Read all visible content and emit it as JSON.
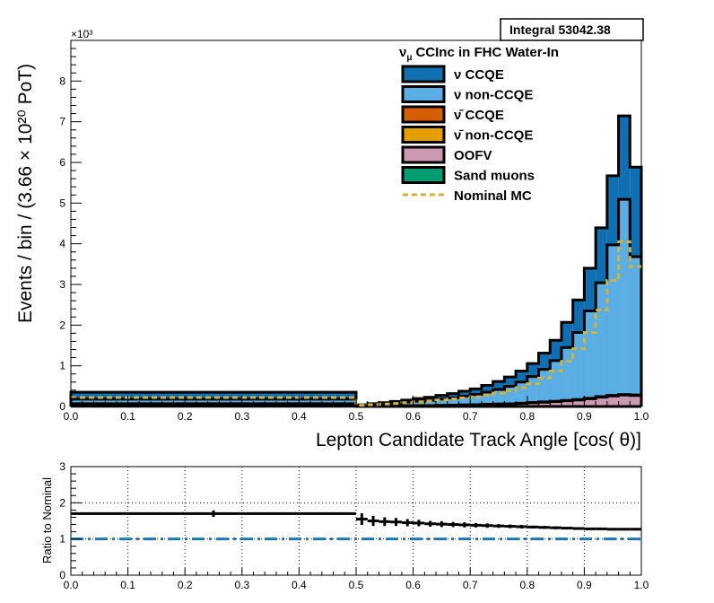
{
  "chart_data": [
    {
      "type": "area",
      "stacked": true,
      "title": "",
      "integral_label": "Integral 53042.38",
      "legend_title": "CCInc in FHC Water-In",
      "legend_title_symbol": "ν",
      "legend_title_subscript": "μ",
      "legend_placement": "top-right",
      "xlabel": "Lepton Candidate Track Angle [cos(   θ)]",
      "ylabel": "Events / bin / (3.66  × 10²⁰ PoT)",
      "y_exponent_label": "×10³",
      "xlim": [
        0.0,
        1.0
      ],
      "ylim": [
        0,
        9000
      ],
      "grid": false,
      "x_ticks": [
        "0.0",
        "0.1",
        "0.2",
        "0.3",
        "0.4",
        "0.5",
        "0.6",
        "0.7",
        "0.8",
        "0.9",
        "1.0"
      ],
      "y_ticks": [
        "0",
        "1",
        "2",
        "3",
        "4",
        "5",
        "6",
        "7",
        "8"
      ],
      "bin_edges": [
        0.0,
        0.5,
        0.52,
        0.54,
        0.56,
        0.58,
        0.6,
        0.62,
        0.64,
        0.66,
        0.68,
        0.7,
        0.72,
        0.74,
        0.76,
        0.78,
        0.8,
        0.82,
        0.84,
        0.86,
        0.88,
        0.9,
        0.92,
        0.94,
        0.96,
        0.98,
        1.0
      ],
      "series": [
        {
          "name": "CCQE",
          "symbol": "ν",
          "color": "#0f6fb0",
          "values": [
            170,
            10,
            20,
            30,
            40,
            50,
            65,
            75,
            90,
            105,
            120,
            140,
            165,
            195,
            230,
            270,
            320,
            400,
            500,
            620,
            800,
            1050,
            1350,
            1700,
            2050,
            2200
          ]
        },
        {
          "name": "non-CCQE",
          "symbol": "ν",
          "color": "#5aaee3",
          "values": [
            110,
            25,
            40,
            55,
            70,
            90,
            110,
            130,
            155,
            180,
            215,
            250,
            300,
            360,
            430,
            520,
            640,
            800,
            1000,
            1300,
            1650,
            2150,
            2800,
            3700,
            4800,
            3400
          ]
        },
        {
          "name": "CCQE",
          "symbol": "ν̄",
          "color": "#d55e00",
          "values": [
            2,
            0,
            0,
            0,
            1,
            1,
            1,
            1,
            1,
            2,
            2,
            2,
            2,
            3,
            3,
            3,
            4,
            4,
            5,
            5,
            6,
            6,
            7,
            7,
            8,
            8
          ]
        },
        {
          "name": "non-CCQE",
          "symbol": "ν̄",
          "color": "#e69f00",
          "values": [
            2,
            0,
            0,
            0,
            1,
            1,
            1,
            1,
            1,
            1,
            2,
            2,
            2,
            2,
            2,
            3,
            3,
            3,
            3,
            4,
            4,
            4,
            5,
            5,
            5,
            5
          ]
        },
        {
          "name": "OOFV",
          "symbol": "",
          "color": "#cc99b2",
          "values": [
            60,
            5,
            8,
            10,
            12,
            15,
            18,
            20,
            25,
            30,
            35,
            40,
            50,
            55,
            60,
            75,
            90,
            105,
            120,
            140,
            160,
            190,
            230,
            260,
            280,
            270
          ]
        },
        {
          "name": "Sand muons",
          "symbol": "",
          "color": "#009e73",
          "values": [
            5,
            0,
            0,
            0,
            0,
            0,
            0,
            0,
            0,
            0,
            0,
            0,
            0,
            0,
            0,
            0,
            0,
            0,
            0,
            0,
            0,
            0,
            0,
            0,
            0,
            0
          ]
        }
      ],
      "nominal_mc": {
        "name": "Nominal MC",
        "color": "#d4b33a",
        "values": [
          220,
          30,
          45,
          60,
          75,
          95,
          115,
          135,
          160,
          185,
          210,
          240,
          280,
          330,
          390,
          460,
          560,
          700,
          870,
          1110,
          1420,
          1820,
          2370,
          3100,
          4050,
          3440
        ]
      }
    },
    {
      "type": "scatter",
      "ylabel": "Ratio to Nominal",
      "xlim": [
        0.0,
        1.0
      ],
      "ylim": [
        0,
        3
      ],
      "grid": true,
      "x_ticks": [
        "0.0",
        "0.1",
        "0.2",
        "0.3",
        "0.4",
        "0.5",
        "0.6",
        "0.7",
        "0.8",
        "0.9",
        "1.0"
      ],
      "y_ticks": [
        "0",
        "1",
        "2",
        "3"
      ],
      "reference_line": {
        "y": 1.0,
        "color": "#1f77b4"
      },
      "bin_edges": [
        0.0,
        0.5,
        0.52,
        0.54,
        0.56,
        0.58,
        0.6,
        0.62,
        0.64,
        0.66,
        0.68,
        0.7,
        0.72,
        0.74,
        0.76,
        0.78,
        0.8,
        0.82,
        0.84,
        0.86,
        0.88,
        0.9,
        0.92,
        0.94,
        0.96,
        0.98,
        1.0
      ],
      "values": [
        1.7,
        1.55,
        1.5,
        1.48,
        1.47,
        1.45,
        1.44,
        1.42,
        1.41,
        1.4,
        1.39,
        1.38,
        1.37,
        1.36,
        1.35,
        1.34,
        1.33,
        1.32,
        1.31,
        1.3,
        1.29,
        1.28,
        1.28,
        1.27,
        1.27,
        1.27
      ],
      "errors": [
        0.09,
        0.16,
        0.14,
        0.12,
        0.11,
        0.1,
        0.09,
        0.08,
        0.08,
        0.07,
        0.07,
        0.06,
        0.06,
        0.05,
        0.05,
        0.05,
        0.04,
        0.04,
        0.04,
        0.03,
        0.03,
        0.03,
        0.03,
        0.02,
        0.02,
        0.02
      ]
    }
  ]
}
